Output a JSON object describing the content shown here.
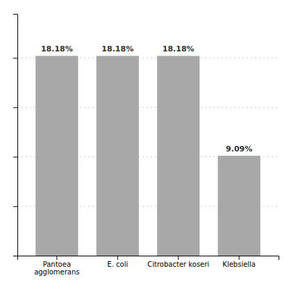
{
  "chart_data": {
    "type": "bar",
    "categories": [
      "Pantoea\nagglomerans",
      "E. coli",
      "Citrobacter koseri",
      "Klebsiella"
    ],
    "values": [
      18.18,
      18.18,
      18.18,
      9.09
    ],
    "value_labels": [
      "18.18%",
      "18.18%",
      "18.18%",
      "9.09%"
    ],
    "color": "#a8a8a8",
    "ylim": [
      0,
      22
    ],
    "yticks": [
      4.5,
      9,
      13.5,
      18
    ],
    "grid": true,
    "data_labels": true,
    "tick_labels": "x"
  }
}
